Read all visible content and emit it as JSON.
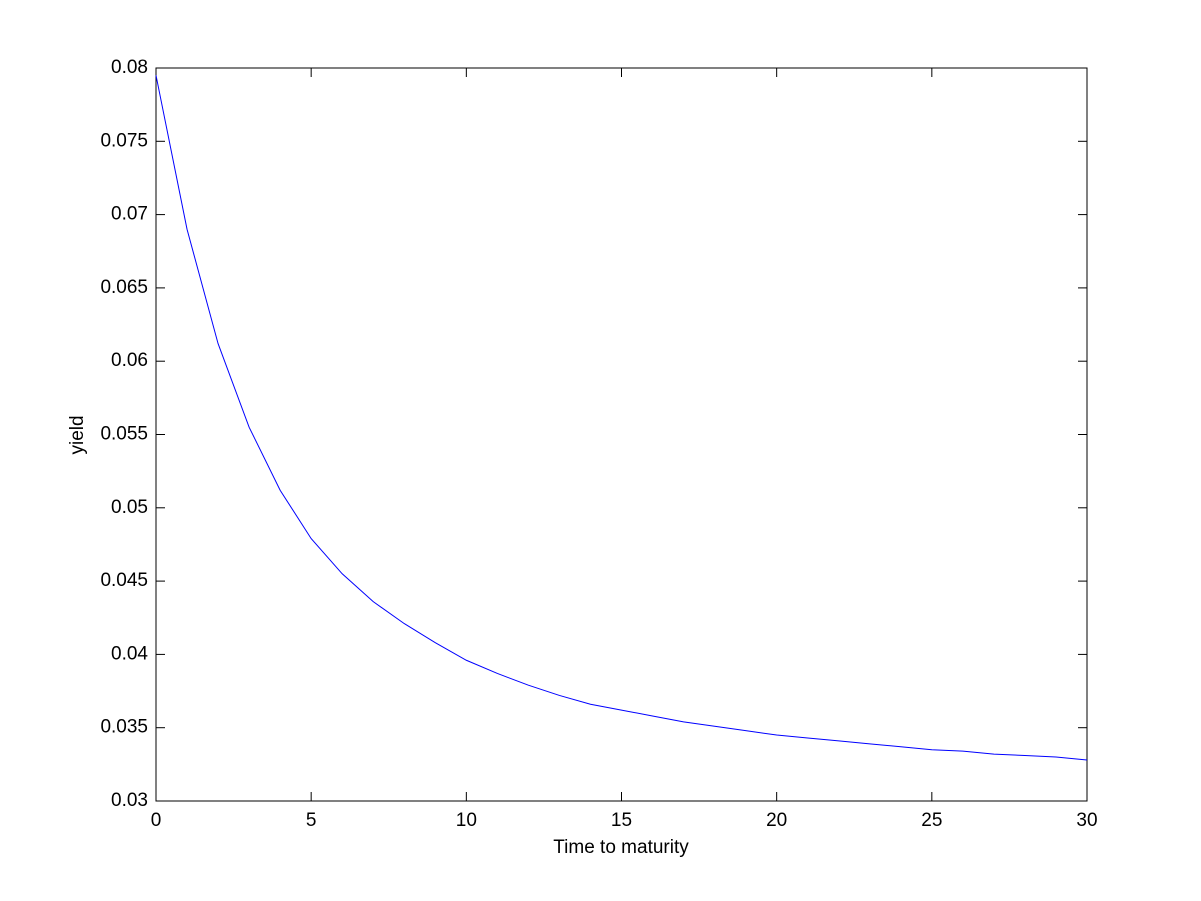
{
  "chart_data": {
    "type": "line",
    "x_label": "Time to maturity",
    "y_label": "yield",
    "x": [
      0,
      1,
      2,
      3,
      4,
      5,
      6,
      7,
      8,
      9,
      10,
      11,
      12,
      13,
      14,
      15,
      16,
      17,
      18,
      19,
      20,
      21,
      22,
      23,
      24,
      25,
      26,
      27,
      28,
      29,
      30
    ],
    "series": [
      {
        "color": "#0000ff",
        "values": [
          0.0795,
          0.069,
          0.0612,
          0.0555,
          0.0512,
          0.0479,
          0.0455,
          0.0436,
          0.0421,
          0.0408,
          0.0396,
          0.0387,
          0.0379,
          0.0372,
          0.0366,
          0.0362,
          0.0358,
          0.0354,
          0.0351,
          0.0348,
          0.0345,
          0.0343,
          0.0341,
          0.0339,
          0.0337,
          0.0335,
          0.0334,
          0.0332,
          0.0331,
          0.033,
          0.0328
        ]
      }
    ],
    "xlim": [
      0,
      30
    ],
    "xticks": [
      0,
      5,
      10,
      15,
      20,
      25,
      30
    ],
    "ylim": [
      0.03,
      0.08
    ],
    "yticks": [
      0.03,
      0.035,
      0.04,
      0.045,
      0.05,
      0.055,
      0.06,
      0.065,
      0.07,
      0.075,
      0.08
    ],
    "grid": false
  }
}
